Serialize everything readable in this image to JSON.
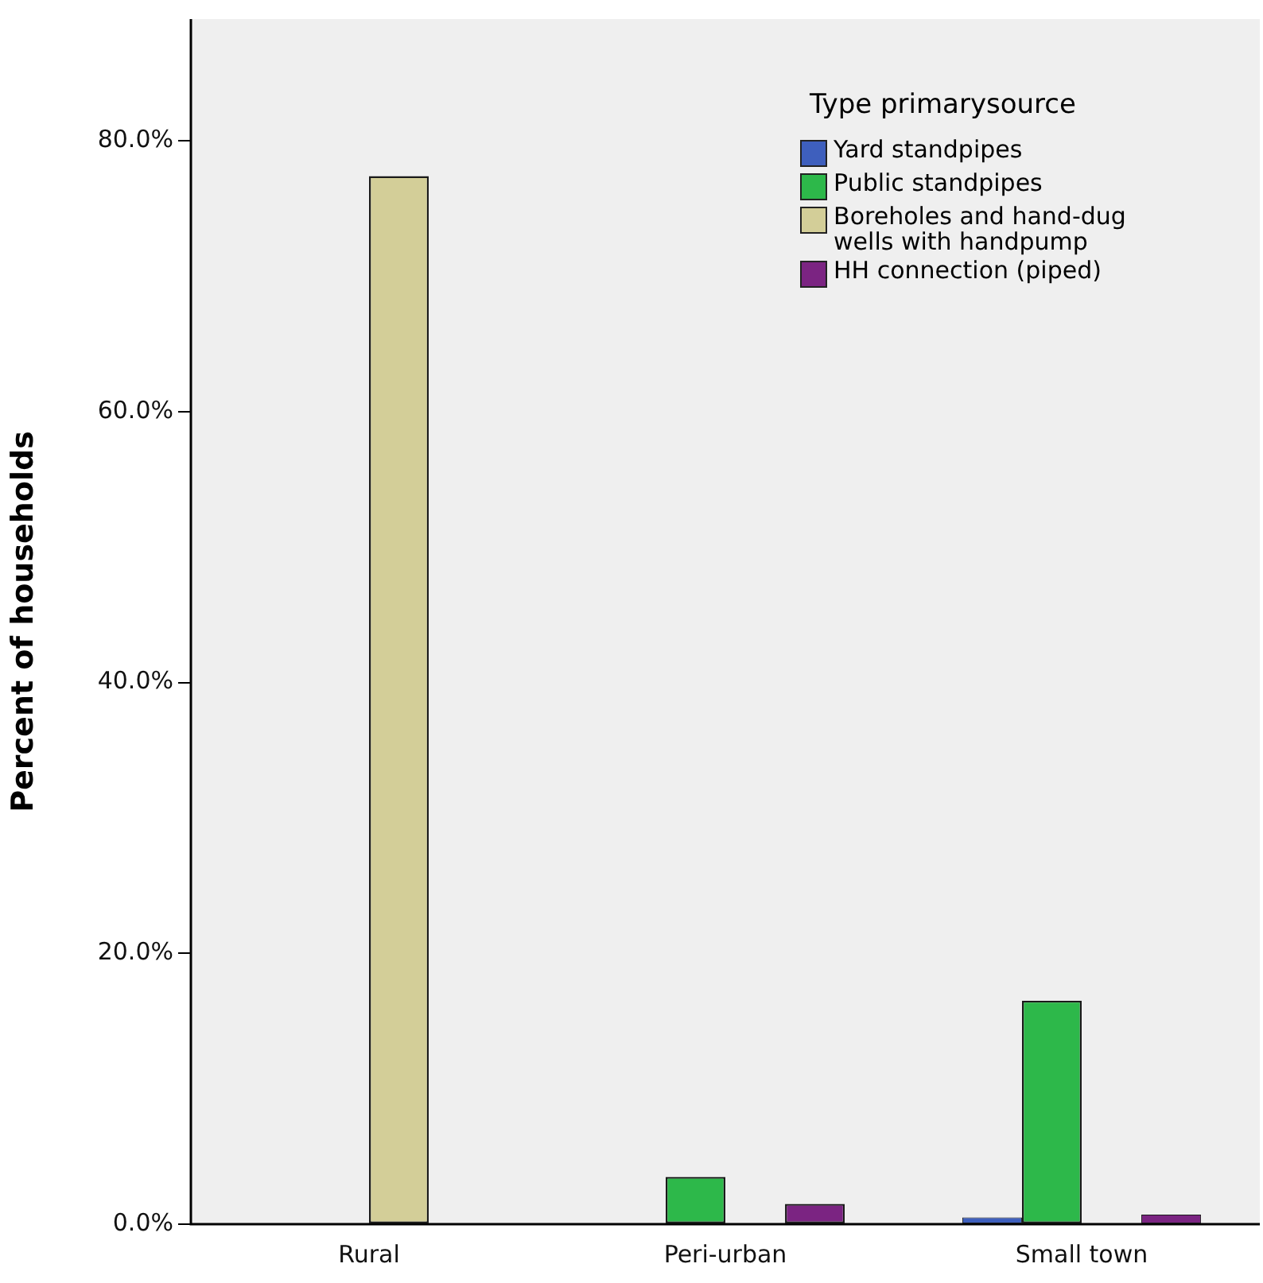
{
  "chart_data": {
    "type": "bar",
    "ylabel": "Percent of households",
    "legend_title": "Type primarysource",
    "legend": "top right",
    "grid": false,
    "categories": [
      "Rural",
      "Peri-urban",
      "Small town"
    ],
    "series": [
      {
        "name": "Yard standpipes",
        "color": "#3e5fbd",
        "values": [
          0,
          0,
          0.5
        ]
      },
      {
        "name": "Public standpipes",
        "color": "#2db84a",
        "values": [
          0,
          3.5,
          16.5
        ]
      },
      {
        "name": "Boreholes and hand-dug wells with handpump",
        "color": "#d3ce98",
        "values": [
          77.4,
          0,
          0
        ]
      },
      {
        "name": "HH connection (piped)",
        "color": "#7b2482",
        "values": [
          0,
          1.5,
          0.7
        ]
      }
    ],
    "ylim": [
      0,
      89
    ],
    "yticks": [
      {
        "value": 0,
        "label": "0.0%"
      },
      {
        "value": 20,
        "label": "20.0%"
      },
      {
        "value": 40,
        "label": "40.0%"
      },
      {
        "value": 60,
        "label": "60.0%"
      },
      {
        "value": 80,
        "label": "80.0%"
      }
    ]
  }
}
